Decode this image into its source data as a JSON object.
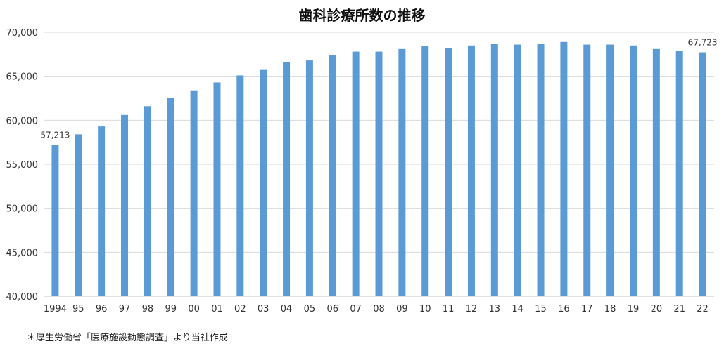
{
  "chart_data": {
    "type": "bar",
    "title": "歯科診療所数の推移",
    "xlabel": "",
    "ylabel": "",
    "ylim": [
      40000,
      70000
    ],
    "yticks": [
      40000,
      45000,
      50000,
      55000,
      60000,
      65000,
      70000
    ],
    "ytick_labels": [
      "40,000",
      "45,000",
      "50,000",
      "55,000",
      "60,000",
      "65,000",
      "70,000"
    ],
    "grid": true,
    "legend": "none",
    "bar_color": "#5b9bd5",
    "categories": [
      "1994",
      "95",
      "96",
      "97",
      "98",
      "99",
      "00",
      "01",
      "02",
      "03",
      "04",
      "05",
      "06",
      "07",
      "08",
      "09",
      "10",
      "11",
      "12",
      "13",
      "14",
      "15",
      "16",
      "17",
      "18",
      "19",
      "20",
      "21",
      "22"
    ],
    "values": [
      57213,
      58400,
      59300,
      60600,
      61600,
      62500,
      63400,
      64300,
      65100,
      65800,
      66600,
      66800,
      67400,
      67800,
      67800,
      68100,
      68400,
      68200,
      68500,
      68700,
      68600,
      68700,
      68900,
      68600,
      68600,
      68500,
      68100,
      67900,
      67723
    ],
    "data_labels": [
      {
        "index": 0,
        "text": "57,213"
      },
      {
        "index": 28,
        "text": "67,723"
      }
    ]
  },
  "source_note": "＊厚生労働省「医療施設動態調査」より当社作成"
}
